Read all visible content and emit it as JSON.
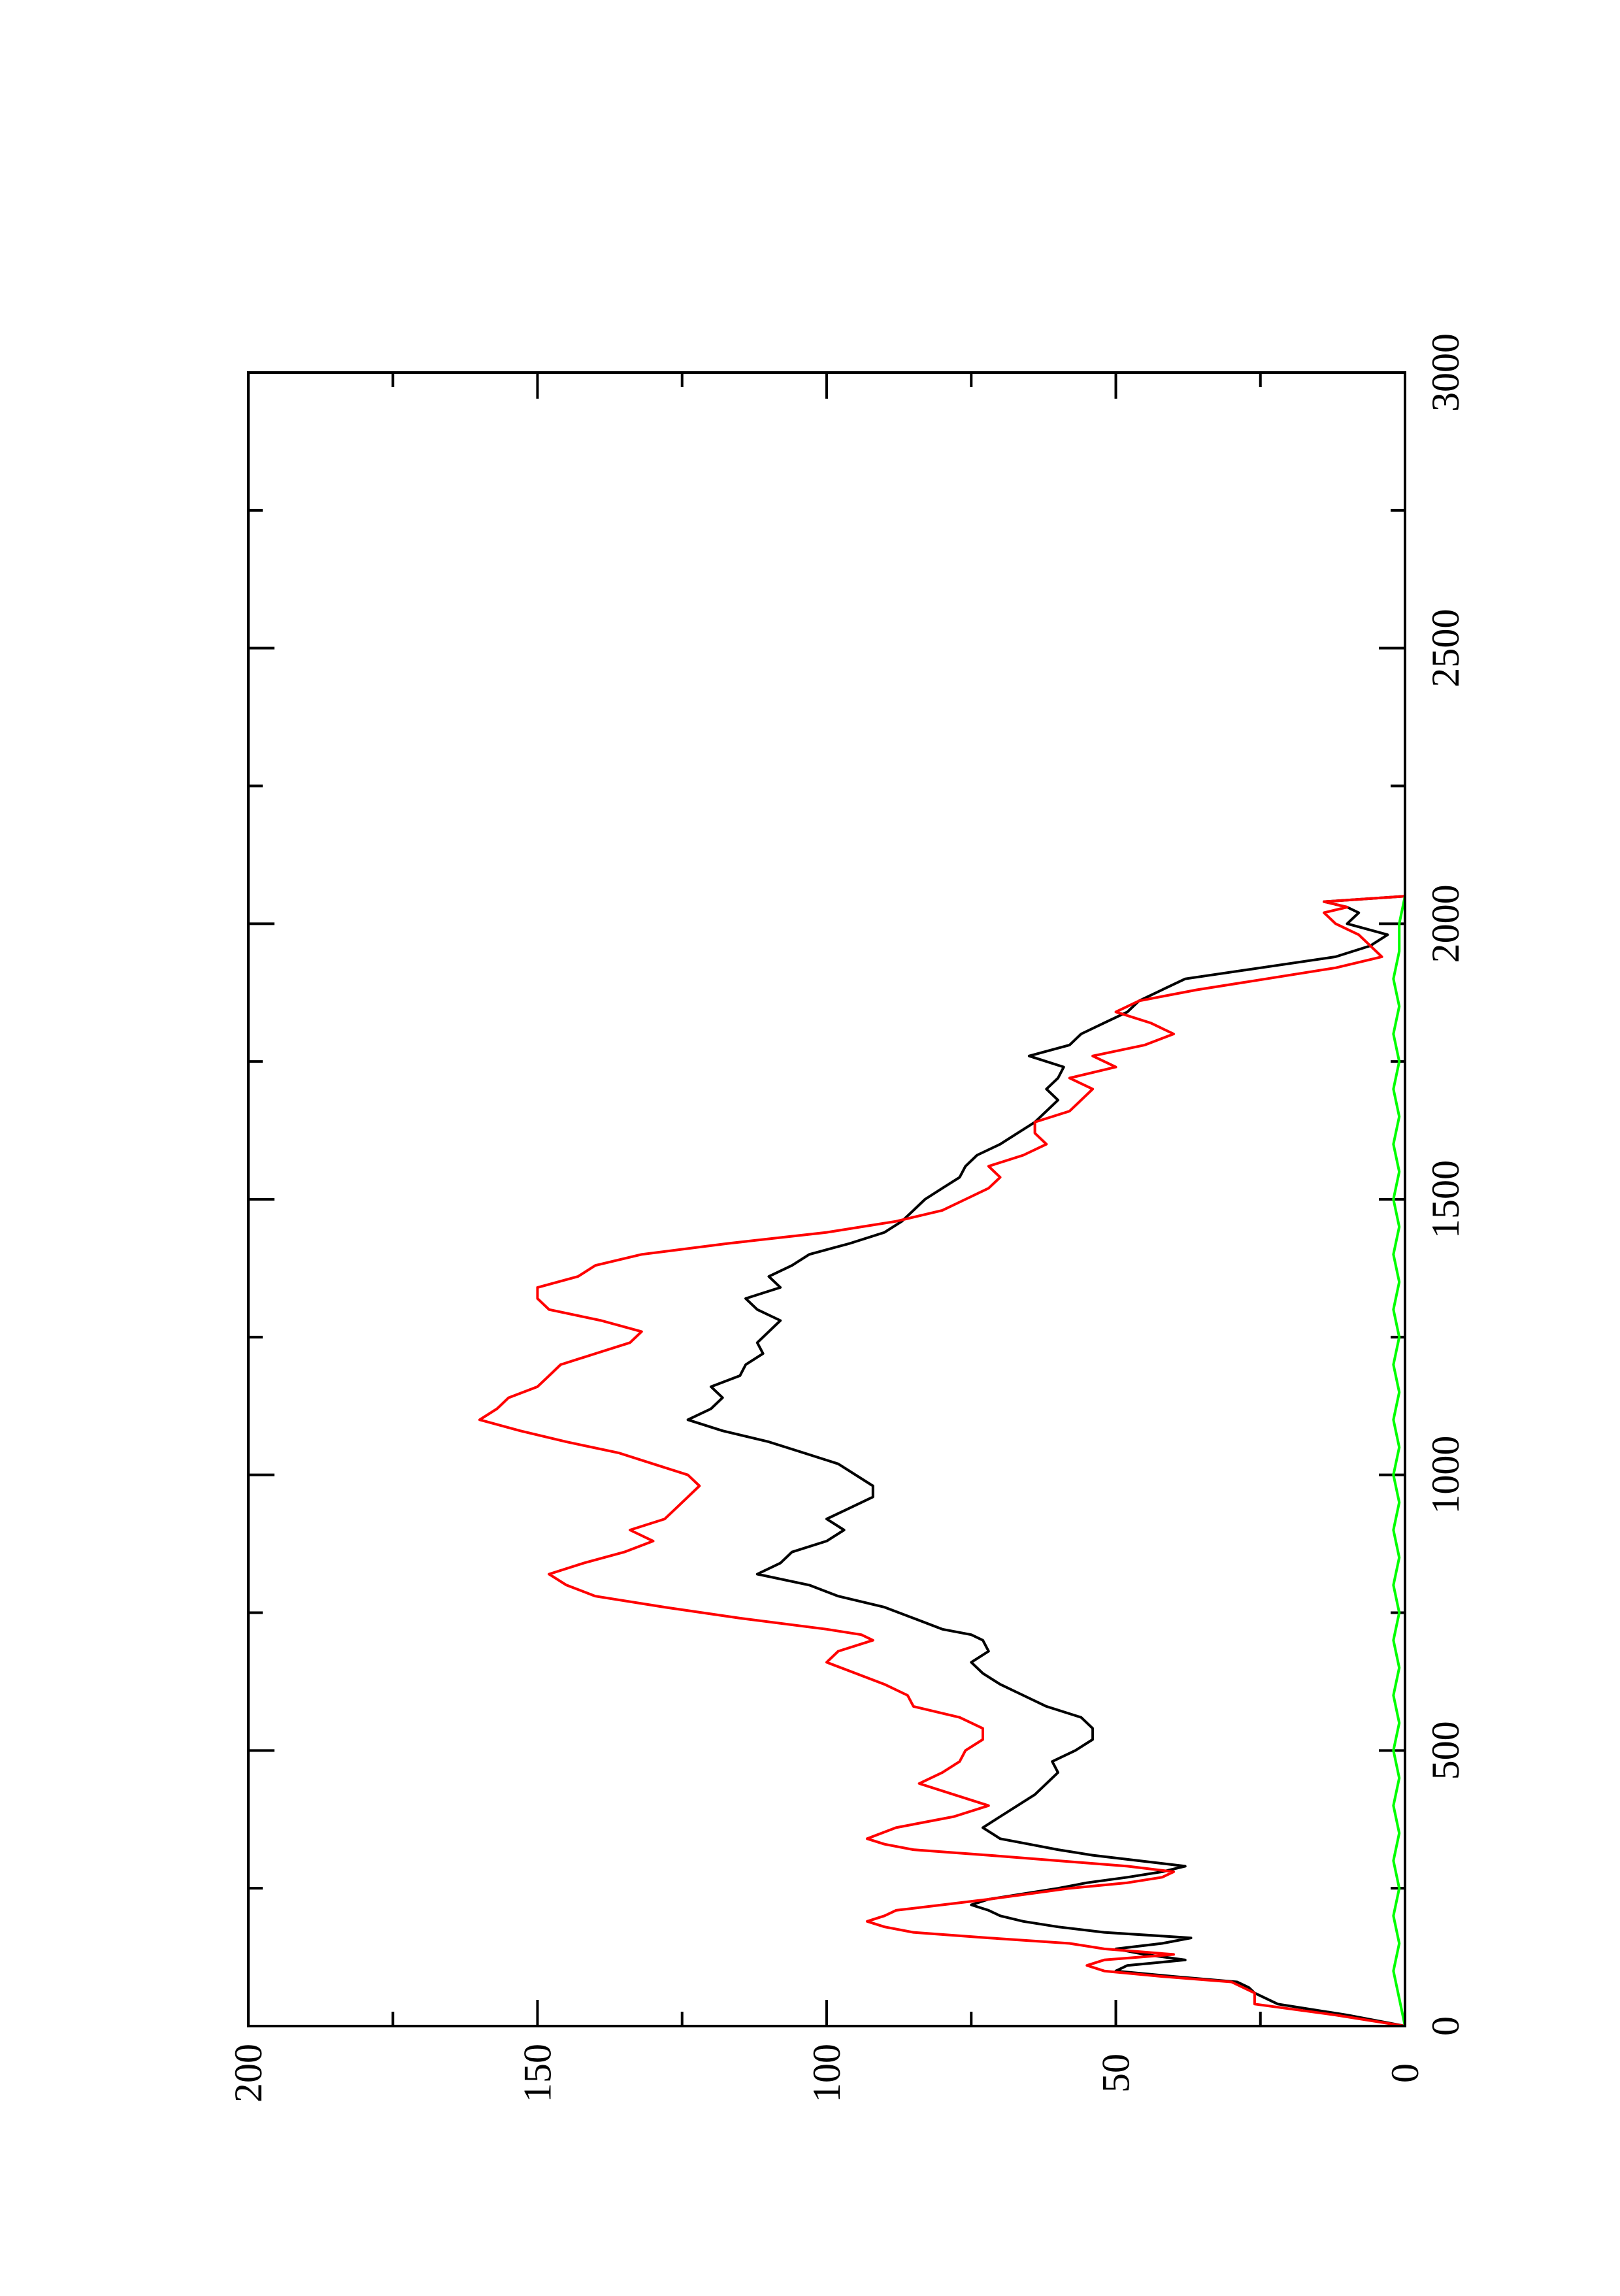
{
  "chart_data": {
    "type": "line",
    "orientation": "rotated-90-ccw",
    "title": "",
    "xlabel": "",
    "ylabel": "",
    "xlim": [
      0,
      3000
    ],
    "ylim": [
      0,
      200
    ],
    "x_ticks": [
      "0",
      "500",
      "1000",
      "1500",
      "2000",
      "2500",
      "3000"
    ],
    "y_ticks": [
      "0",
      "50",
      "100",
      "150",
      "200"
    ],
    "x_minor_step": 250,
    "y_minor_step": 25,
    "grid": false,
    "legend": "none",
    "series": [
      {
        "color": "#000000",
        "x": [
          0,
          20,
          40,
          60,
          70,
          80,
          90,
          100,
          110,
          120,
          130,
          140,
          150,
          160,
          170,
          180,
          190,
          200,
          210,
          220,
          230,
          240,
          250,
          260,
          270,
          280,
          290,
          300,
          310,
          320,
          330,
          340,
          360,
          380,
          400,
          420,
          440,
          460,
          480,
          500,
          520,
          540,
          560,
          580,
          600,
          620,
          640,
          660,
          680,
          700,
          710,
          720,
          740,
          760,
          780,
          800,
          820,
          840,
          860,
          880,
          900,
          920,
          940,
          960,
          980,
          1000,
          1020,
          1040,
          1060,
          1080,
          1100,
          1120,
          1140,
          1160,
          1180,
          1200,
          1220,
          1240,
          1260,
          1280,
          1300,
          1320,
          1340,
          1360,
          1380,
          1400,
          1420,
          1440,
          1460,
          1480,
          1500,
          1520,
          1540,
          1560,
          1580,
          1600,
          1620,
          1640,
          1660,
          1680,
          1700,
          1720,
          1740,
          1760,
          1780,
          1800,
          1820,
          1840,
          1860,
          1880,
          1900,
          1920,
          1940,
          1960,
          1980,
          2000,
          2020,
          2030,
          2040,
          2050
        ],
        "values": [
          0,
          10,
          22,
          26,
          27,
          29,
          40,
          50,
          48,
          38,
          45,
          50,
          42,
          37,
          52,
          60,
          66,
          70,
          72,
          75,
          72,
          66,
          60,
          55,
          48,
          42,
          38,
          46,
          54,
          60,
          65,
          70,
          73,
          70,
          67,
          64,
          62,
          60,
          61,
          57,
          54,
          54,
          56,
          62,
          66,
          70,
          73,
          75,
          72,
          73,
          75,
          80,
          85,
          90,
          98,
          103,
          112,
          108,
          106,
          100,
          97,
          100,
          96,
          92,
          92,
          95,
          98,
          104,
          110,
          118,
          124,
          120,
          118,
          120,
          115,
          114,
          111,
          112,
          110,
          108,
          112,
          114,
          108,
          110,
          106,
          103,
          96,
          90,
          87,
          85,
          83,
          80,
          77,
          76,
          74,
          70,
          67,
          64,
          62,
          60,
          62,
          60,
          59,
          65,
          58,
          56,
          52,
          48,
          46,
          42,
          38,
          25,
          12,
          6,
          3,
          10,
          8,
          10,
          14,
          0
        ]
      },
      {
        "color": "#ff0000",
        "x": [
          0,
          20,
          40,
          60,
          70,
          80,
          90,
          100,
          110,
          120,
          130,
          140,
          150,
          160,
          170,
          180,
          190,
          200,
          210,
          220,
          230,
          240,
          250,
          260,
          270,
          280,
          290,
          300,
          310,
          320,
          330,
          340,
          360,
          380,
          400,
          420,
          440,
          460,
          480,
          500,
          520,
          540,
          560,
          580,
          600,
          620,
          640,
          660,
          680,
          700,
          710,
          720,
          740,
          760,
          780,
          800,
          820,
          840,
          860,
          880,
          900,
          920,
          940,
          960,
          980,
          1000,
          1020,
          1040,
          1060,
          1080,
          1100,
          1120,
          1140,
          1160,
          1180,
          1200,
          1220,
          1240,
          1260,
          1280,
          1300,
          1320,
          1340,
          1360,
          1380,
          1400,
          1420,
          1440,
          1460,
          1480,
          1500,
          1520,
          1540,
          1560,
          1580,
          1600,
          1620,
          1640,
          1660,
          1680,
          1700,
          1720,
          1740,
          1760,
          1780,
          1800,
          1820,
          1840,
          1860,
          1880,
          1900,
          1920,
          1940,
          1960,
          1980,
          2000,
          2020,
          2030,
          2040,
          2050
        ],
        "values": [
          0,
          12,
          26,
          26,
          28,
          30,
          42,
          52,
          55,
          52,
          40,
          52,
          58,
          72,
          85,
          90,
          93,
          90,
          88,
          80,
          72,
          65,
          58,
          48,
          42,
          40,
          48,
          60,
          72,
          85,
          90,
          93,
          88,
          78,
          72,
          78,
          84,
          80,
          77,
          76,
          73,
          73,
          77,
          85,
          86,
          90,
          95,
          100,
          98,
          92,
          94,
          100,
          115,
          128,
          140,
          145,
          148,
          142,
          135,
          130,
          134,
          128,
          126,
          124,
          122,
          124,
          130,
          136,
          145,
          153,
          160,
          157,
          155,
          150,
          148,
          146,
          140,
          134,
          132,
          139,
          148,
          150,
          150,
          143,
          140,
          132,
          117,
          100,
          88,
          80,
          76,
          72,
          70,
          72,
          66,
          62,
          64,
          64,
          58,
          56,
          54,
          58,
          50,
          54,
          45,
          40,
          44,
          50,
          46,
          36,
          24,
          12,
          4,
          6,
          8,
          12,
          14,
          10,
          14,
          0
        ]
      },
      {
        "color": "#00ff00",
        "x": [
          0,
          50,
          100,
          150,
          200,
          250,
          300,
          350,
          400,
          450,
          500,
          550,
          600,
          650,
          700,
          750,
          800,
          850,
          900,
          950,
          1000,
          1050,
          1100,
          1150,
          1200,
          1250,
          1300,
          1350,
          1400,
          1450,
          1500,
          1550,
          1600,
          1650,
          1700,
          1750,
          1800,
          1850,
          1900,
          1950,
          2000,
          2050
        ],
        "values": [
          0,
          1,
          2,
          1,
          2,
          1,
          2,
          1,
          2,
          1,
          2,
          1,
          2,
          1,
          2,
          1,
          2,
          1,
          2,
          1,
          2,
          1,
          2,
          1,
          2,
          1,
          2,
          1,
          2,
          1,
          2,
          1,
          2,
          1,
          2,
          1,
          2,
          1,
          2,
          1,
          1,
          0
        ]
      }
    ]
  }
}
